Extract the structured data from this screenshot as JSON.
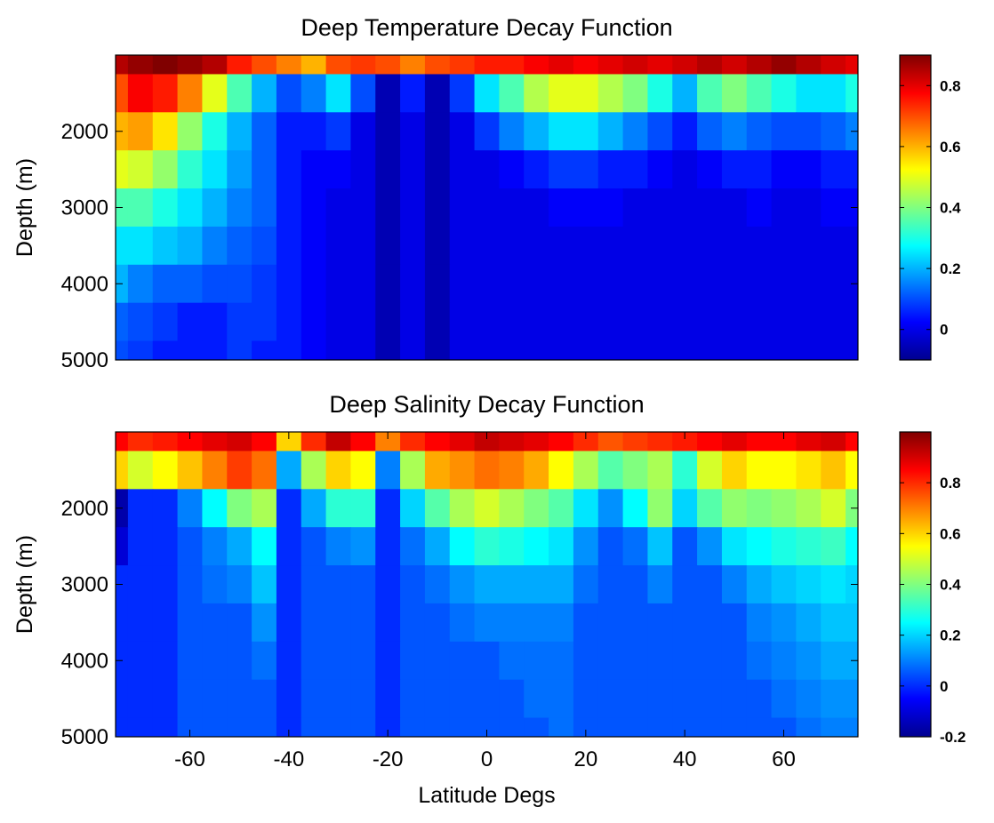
{
  "chart_data": [
    {
      "type": "heatmap",
      "title": "Deep Temperature Decay Function",
      "xlabel": "",
      "ylabel": "Depth (m)",
      "xlim": [
        -75,
        75
      ],
      "ylim": [
        1000,
        5000
      ],
      "y_reversed": true,
      "x_ticks": [],
      "y_ticks": [
        2000,
        3000,
        4000,
        5000
      ],
      "colorbar": {
        "colormap": "jet",
        "clim": [
          -0.1,
          0.9
        ],
        "ticks": [
          0,
          0.2,
          0.4,
          0.6,
          0.8
        ]
      },
      "grid": false,
      "z_description": "decay function value, contour-filled",
      "x": [
        -75,
        -70,
        -65,
        -60,
        -55,
        -50,
        -45,
        -40,
        -35,
        -30,
        -25,
        -20,
        -15,
        -10,
        -5,
        0,
        5,
        10,
        15,
        20,
        25,
        30,
        35,
        40,
        45,
        50,
        55,
        60,
        65,
        70,
        75
      ],
      "y": [
        1000,
        1500,
        2000,
        2500,
        3000,
        3500,
        4000,
        4500,
        5000
      ],
      "z": [
        [
          0.85,
          0.88,
          0.9,
          0.88,
          0.85,
          0.75,
          0.7,
          0.65,
          0.6,
          0.7,
          0.72,
          0.7,
          0.65,
          0.7,
          0.72,
          0.75,
          0.75,
          0.78,
          0.8,
          0.78,
          0.8,
          0.82,
          0.8,
          0.82,
          0.85,
          0.82,
          0.85,
          0.88,
          0.85,
          0.82,
          0.8
        ],
        [
          0.7,
          0.78,
          0.75,
          0.65,
          0.5,
          0.35,
          0.2,
          0.1,
          0.15,
          0.25,
          0.1,
          -0.05,
          0.05,
          -0.05,
          0.08,
          0.25,
          0.35,
          0.45,
          0.5,
          0.5,
          0.45,
          0.4,
          0.3,
          0.2,
          0.35,
          0.4,
          0.35,
          0.3,
          0.25,
          0.25,
          0.3
        ],
        [
          0.6,
          0.62,
          0.55,
          0.42,
          0.3,
          0.2,
          0.12,
          0.05,
          0.05,
          0.08,
          0.0,
          -0.05,
          0.0,
          -0.05,
          0.0,
          0.08,
          0.15,
          0.2,
          0.25,
          0.25,
          0.2,
          0.15,
          0.1,
          0.05,
          0.12,
          0.15,
          0.12,
          0.1,
          0.1,
          0.12,
          0.15
        ],
        [
          0.5,
          0.48,
          0.42,
          0.32,
          0.25,
          0.18,
          0.12,
          0.05,
          0.02,
          0.02,
          0.0,
          -0.05,
          0.0,
          -0.05,
          0.0,
          0.0,
          0.02,
          0.05,
          0.08,
          0.08,
          0.05,
          0.05,
          0.02,
          0.0,
          0.02,
          0.05,
          0.05,
          0.02,
          0.02,
          0.05,
          0.05
        ],
        [
          0.35,
          0.35,
          0.3,
          0.25,
          0.2,
          0.15,
          0.12,
          0.05,
          0.02,
          0.0,
          0.0,
          -0.05,
          0.0,
          -0.05,
          0.0,
          0.0,
          0.0,
          0.0,
          0.02,
          0.02,
          0.02,
          0.0,
          0.0,
          0.0,
          0.0,
          0.0,
          0.02,
          0.0,
          0.0,
          0.02,
          0.02
        ],
        [
          0.25,
          0.25,
          0.22,
          0.2,
          0.15,
          0.12,
          0.1,
          0.05,
          0.02,
          0.0,
          0.0,
          -0.05,
          0.0,
          -0.05,
          0.0,
          0.0,
          0.0,
          0.0,
          0.0,
          0.0,
          0.0,
          0.0,
          0.0,
          0.0,
          0.0,
          0.0,
          0.0,
          0.0,
          0.0,
          0.0,
          0.0
        ],
        [
          0.2,
          0.15,
          0.12,
          0.12,
          0.1,
          0.1,
          0.08,
          0.05,
          0.02,
          0.0,
          0.0,
          -0.05,
          0.0,
          -0.05,
          0.0,
          0.0,
          0.0,
          0.0,
          0.0,
          0.0,
          0.0,
          0.0,
          0.0,
          0.0,
          0.0,
          0.0,
          0.0,
          0.0,
          0.0,
          0.0,
          0.0
        ],
        [
          0.12,
          0.1,
          0.08,
          0.05,
          0.05,
          0.08,
          0.08,
          0.05,
          0.02,
          0.0,
          0.0,
          -0.05,
          0.0,
          -0.05,
          0.0,
          0.0,
          0.0,
          0.0,
          0.0,
          0.0,
          0.0,
          0.0,
          0.0,
          0.0,
          0.0,
          0.0,
          0.0,
          0.0,
          0.0,
          0.0,
          0.0
        ],
        [
          0.1,
          0.08,
          0.05,
          0.05,
          0.05,
          0.08,
          0.05,
          0.05,
          0.02,
          0.0,
          0.0,
          -0.05,
          0.0,
          -0.05,
          0.0,
          0.0,
          0.0,
          0.0,
          0.0,
          0.0,
          0.0,
          0.0,
          0.0,
          0.0,
          0.0,
          0.0,
          0.0,
          0.0,
          0.0,
          0.0,
          0.0
        ]
      ]
    },
    {
      "type": "heatmap",
      "title": "Deep Salinity Decay Function",
      "xlabel": "Latitude Degs",
      "ylabel": "Depth (m)",
      "xlim": [
        -75,
        75
      ],
      "ylim": [
        1000,
        5000
      ],
      "y_reversed": true,
      "x_ticks": [
        -60,
        -40,
        -20,
        0,
        20,
        40,
        60
      ],
      "y_ticks": [
        2000,
        3000,
        4000,
        5000
      ],
      "colorbar": {
        "colormap": "jet",
        "clim": [
          -0.2,
          1.0
        ],
        "ticks": [
          -0.2,
          0,
          0.2,
          0.4,
          0.6,
          0.8
        ]
      },
      "grid": false,
      "z_description": "decay function value, contour-filled",
      "x": [
        -75,
        -70,
        -65,
        -60,
        -55,
        -50,
        -45,
        -40,
        -35,
        -30,
        -25,
        -20,
        -15,
        -10,
        -5,
        0,
        5,
        10,
        15,
        20,
        25,
        30,
        35,
        40,
        45,
        50,
        55,
        60,
        65,
        70,
        75
      ],
      "y": [
        1000,
        1500,
        2000,
        2500,
        3000,
        3500,
        4000,
        4500,
        5000
      ],
      "z": [
        [
          0.85,
          0.8,
          0.82,
          0.85,
          0.88,
          0.9,
          0.85,
          0.6,
          0.8,
          0.92,
          0.85,
          0.7,
          0.8,
          0.85,
          0.88,
          0.92,
          0.9,
          0.88,
          0.85,
          0.8,
          0.75,
          0.78,
          0.8,
          0.82,
          0.85,
          0.88,
          0.85,
          0.85,
          0.88,
          0.9,
          0.85
        ],
        [
          0.6,
          0.5,
          0.55,
          0.62,
          0.7,
          0.78,
          0.72,
          0.15,
          0.45,
          0.6,
          0.55,
          0.1,
          0.45,
          0.65,
          0.68,
          0.72,
          0.7,
          0.65,
          0.55,
          0.45,
          0.35,
          0.4,
          0.45,
          0.3,
          0.5,
          0.6,
          0.55,
          0.55,
          0.58,
          0.62,
          0.55
        ],
        [
          -0.15,
          0.0,
          0.0,
          0.1,
          0.25,
          0.4,
          0.45,
          0.0,
          0.15,
          0.3,
          0.3,
          0.0,
          0.2,
          0.35,
          0.45,
          0.5,
          0.45,
          0.4,
          0.35,
          0.22,
          0.12,
          0.25,
          0.42,
          0.2,
          0.35,
          0.42,
          0.4,
          0.42,
          0.45,
          0.5,
          0.4
        ],
        [
          -0.1,
          0.0,
          0.0,
          0.05,
          0.1,
          0.15,
          0.25,
          0.0,
          0.05,
          0.1,
          0.12,
          0.0,
          0.08,
          0.15,
          0.25,
          0.3,
          0.28,
          0.25,
          0.22,
          0.12,
          0.05,
          0.08,
          0.18,
          0.05,
          0.12,
          0.22,
          0.25,
          0.28,
          0.3,
          0.32,
          0.25
        ],
        [
          0.0,
          0.0,
          0.0,
          0.05,
          0.08,
          0.1,
          0.18,
          0.0,
          0.05,
          0.05,
          0.05,
          0.0,
          0.05,
          0.08,
          0.12,
          0.15,
          0.15,
          0.15,
          0.15,
          0.08,
          0.05,
          0.05,
          0.1,
          0.05,
          0.05,
          0.1,
          0.15,
          0.18,
          0.2,
          0.22,
          0.2
        ],
        [
          0.0,
          0.0,
          0.0,
          0.05,
          0.05,
          0.05,
          0.12,
          0.0,
          0.05,
          0.05,
          0.05,
          0.0,
          0.05,
          0.05,
          0.08,
          0.1,
          0.1,
          0.1,
          0.1,
          0.05,
          0.05,
          0.05,
          0.05,
          0.05,
          0.05,
          0.05,
          0.1,
          0.12,
          0.15,
          0.18,
          0.18
        ],
        [
          0.0,
          0.0,
          0.0,
          0.05,
          0.05,
          0.05,
          0.08,
          0.0,
          0.05,
          0.05,
          0.05,
          0.0,
          0.05,
          0.05,
          0.05,
          0.05,
          0.08,
          0.08,
          0.08,
          0.05,
          0.05,
          0.05,
          0.05,
          0.05,
          0.05,
          0.05,
          0.08,
          0.1,
          0.12,
          0.15,
          0.15
        ],
        [
          0.0,
          0.0,
          0.0,
          0.05,
          0.05,
          0.05,
          0.05,
          0.0,
          0.05,
          0.05,
          0.05,
          0.0,
          0.05,
          0.05,
          0.05,
          0.05,
          0.05,
          0.08,
          0.08,
          0.05,
          0.05,
          0.05,
          0.05,
          0.05,
          0.05,
          0.05,
          0.05,
          0.08,
          0.1,
          0.12,
          0.12
        ],
        [
          0.0,
          0.0,
          0.0,
          0.05,
          0.05,
          0.05,
          0.05,
          0.0,
          0.05,
          0.05,
          0.05,
          0.0,
          0.05,
          0.05,
          0.05,
          0.05,
          0.05,
          0.05,
          0.08,
          0.05,
          0.05,
          0.05,
          0.05,
          0.05,
          0.05,
          0.05,
          0.05,
          0.05,
          0.08,
          0.1,
          0.1
        ]
      ]
    }
  ]
}
